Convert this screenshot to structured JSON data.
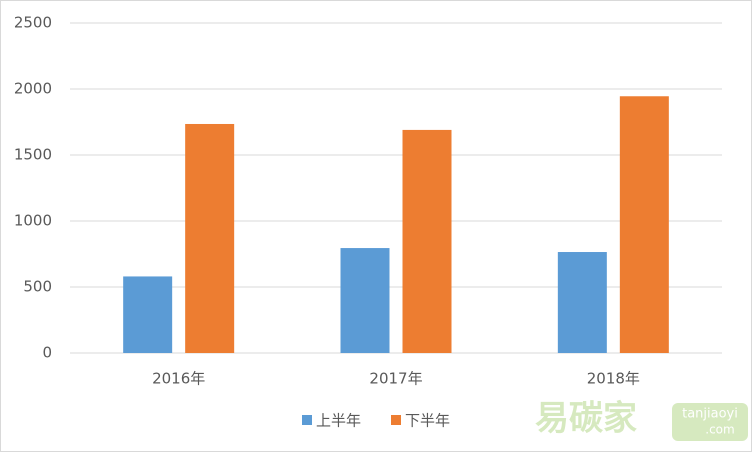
{
  "chart_data": {
    "type": "bar",
    "categories": [
      "2016年",
      "2017年",
      "2018年"
    ],
    "series": [
      {
        "name": "上半年",
        "color": "#5b9bd5",
        "values": [
          580,
          795,
          765
        ]
      },
      {
        "name": "下半年",
        "color": "#ed7d31",
        "values": [
          1735,
          1690,
          1945
        ]
      }
    ],
    "ylim": [
      0,
      2500
    ],
    "yticks": [
      0,
      500,
      1000,
      1500,
      2000,
      2500
    ],
    "grid": true,
    "legend": "bottom"
  },
  "watermark": [
    "易碳家",
    "tanjiaoyi",
    ".com"
  ]
}
